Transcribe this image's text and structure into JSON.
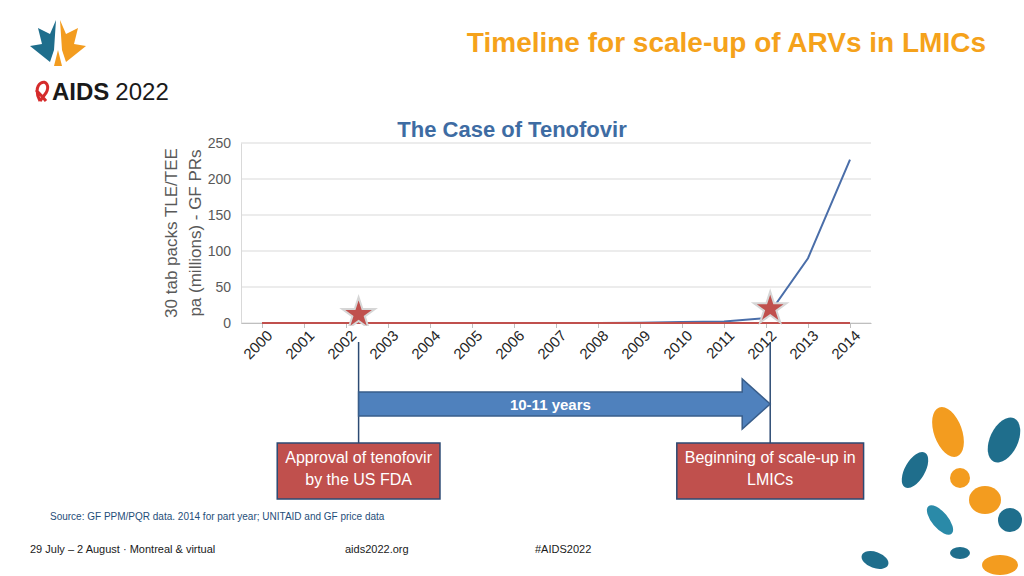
{
  "header": {
    "title": "Timeline for scale-up of ARVs in LMICs",
    "logo": [
      "AIDS",
      "2022"
    ]
  },
  "chart_data": {
    "type": "line",
    "title": "The Case of Tenofovir",
    "y_label": [
      "30 tab packs TLE/TEE",
      "pa (millions) - GF PRs"
    ],
    "x": [
      2000,
      2001,
      2002,
      2003,
      2004,
      2005,
      2006,
      2007,
      2008,
      2009,
      2010,
      2011,
      2012,
      2013,
      2014
    ],
    "xlim": [
      1999.5,
      2014.5
    ],
    "xticks": [
      2000,
      2001,
      2002,
      2003,
      2004,
      2005,
      2006,
      2007,
      2008,
      2009,
      2010,
      2011,
      2012,
      2013,
      2014
    ],
    "ylim": [
      0,
      250
    ],
    "yticks": [
      0,
      50,
      100,
      150,
      200,
      250
    ],
    "grid": true,
    "series": [
      {
        "color": "#4a6ea9",
        "values": [
          0,
          0,
          0,
          0,
          0,
          0,
          0,
          0,
          0,
          0.5,
          1.5,
          2,
          7,
          90,
          227
        ]
      },
      {
        "color": "#c0504d",
        "values": [
          0,
          0,
          0,
          0,
          0,
          0,
          0,
          0,
          0,
          0,
          0,
          0,
          0,
          0,
          0
        ]
      }
    ],
    "events": [
      {
        "x": 2002.3,
        "y": 12,
        "label": [
          "Approval of tenofovir",
          "by the US FDA"
        ]
      },
      {
        "x": 2012.1,
        "y": 20,
        "label": [
          "Beginning of scale-up in",
          "LMICs"
        ]
      }
    ],
    "span_label": "10-11 years"
  },
  "footer": {
    "source": "Source: GF PPM/PQR data. 2014 for part year; UNITAID and GF price data",
    "items": [
      "29 July – 2 August · Montreal & virtual",
      "aids2022.org",
      "#AIDS2022"
    ]
  }
}
